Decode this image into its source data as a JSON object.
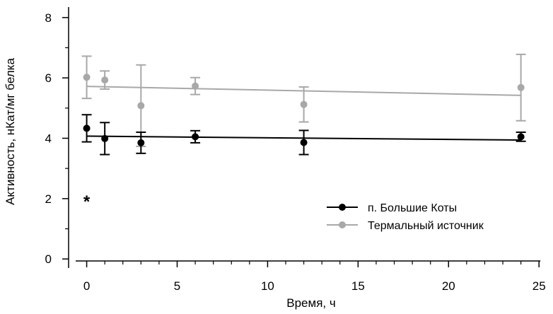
{
  "chart_data": {
    "type": "line",
    "xlabel": "Время, ч",
    "ylabel": "Активность, нКат/мг белка",
    "xlim": [
      -1,
      25.5
    ],
    "ylim": [
      -0.3,
      8.3
    ],
    "xticks": [
      0,
      5,
      10,
      15,
      20,
      25
    ],
    "xminor": [
      1,
      2,
      3,
      4,
      6,
      7,
      8,
      9,
      11,
      12,
      13,
      14,
      16,
      17,
      18,
      19,
      21,
      22,
      23,
      24
    ],
    "yticks": [
      0,
      2,
      4,
      6,
      8
    ],
    "grid": false,
    "legend_position": "lower-right",
    "annotation": {
      "text": "*",
      "x": 0,
      "y": 2.0
    },
    "series": [
      {
        "name": "Термальный источник",
        "color": "#a8a8a8",
        "x": [
          0,
          1,
          3,
          6,
          12,
          24
        ],
        "y": [
          6.02,
          5.93,
          5.08,
          5.73,
          5.12,
          5.68
        ],
        "err": [
          0.7,
          0.3,
          1.35,
          0.28,
          0.58,
          1.1
        ],
        "trend": [
          5.72,
          5.42
        ]
      },
      {
        "name": "п. Большие Коты",
        "color": "#000000",
        "x": [
          0,
          1,
          3,
          6,
          12,
          24
        ],
        "y": [
          4.33,
          3.99,
          3.85,
          4.05,
          3.86,
          4.05
        ],
        "err": [
          0.45,
          0.53,
          0.35,
          0.2,
          0.4,
          0.15
        ],
        "trend": [
          4.07,
          3.94
        ]
      }
    ],
    "legend_order": [
      "п. Большие Коты",
      "Термальный источник"
    ]
  }
}
